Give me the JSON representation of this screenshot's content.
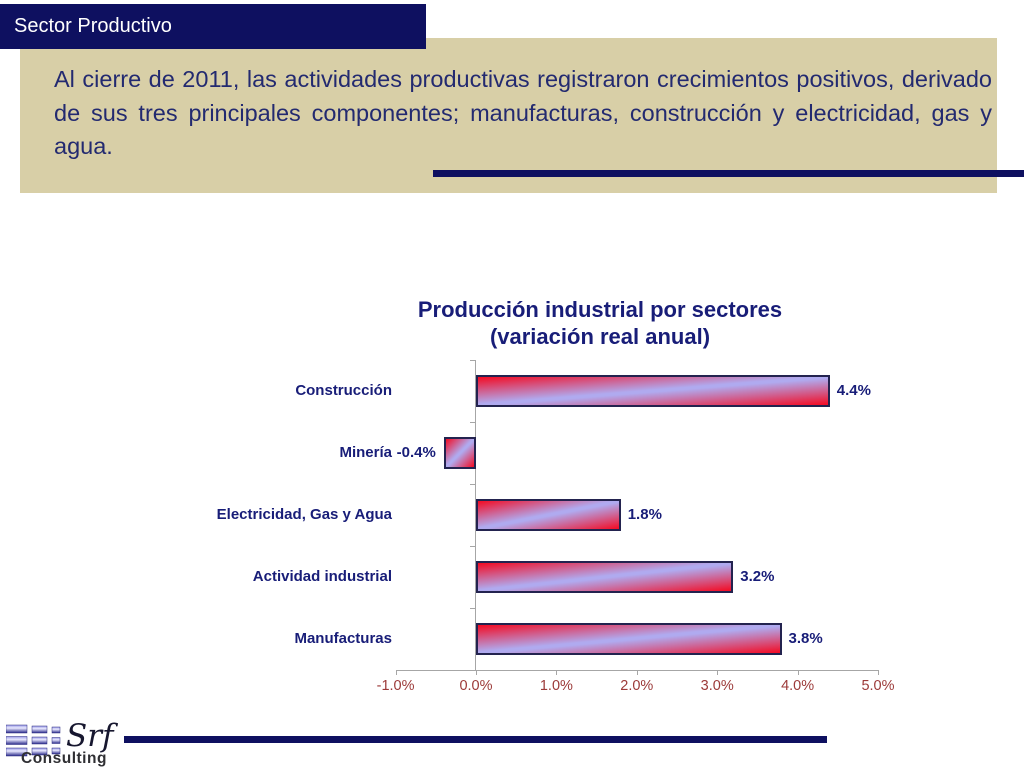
{
  "slide": {
    "header": {
      "title": "Sector Productivo"
    },
    "intro": {
      "text": "Al cierre de 2011, las actividades productivas registraron crecimientos positivos, derivado de sus tres principales componentes; manufacturas, construcción y electricidad, gas y agua."
    },
    "footer": {
      "logo_text": "Srf",
      "logo_subtext": "Consulting"
    },
    "colors": {
      "navy": "#0e1060",
      "beige": "#d8cfa7",
      "text_navy": "#232a70",
      "label_navy": "#181d78",
      "axis_label_red": "#9c3a39",
      "bar_red": "#f40a22",
      "bar_lavender": "#b0aaef",
      "axis_gray": "#a6a6a6"
    }
  },
  "chart_data": {
    "type": "bar",
    "orientation": "horizontal",
    "title": "Producción industrial por sectores",
    "subtitle": "(variación real anual)",
    "categories": [
      "Construcción",
      "Minería",
      "Electricidad, Gas y Agua",
      "Actividad industrial",
      "Manufacturas"
    ],
    "values": [
      4.4,
      -0.4,
      1.8,
      3.2,
      3.8
    ],
    "value_labels": [
      "4.4%",
      "-0.4%",
      "1.8%",
      "3.2%",
      "3.8%"
    ],
    "x_axis": {
      "min": -1.0,
      "max": 5.0,
      "tick_step": 1.0,
      "tick_labels": [
        "-1.0%",
        "0.0%",
        "1.0%",
        "2.0%",
        "3.0%",
        "4.0%",
        "5.0%"
      ]
    },
    "legend": false,
    "grid": false
  }
}
